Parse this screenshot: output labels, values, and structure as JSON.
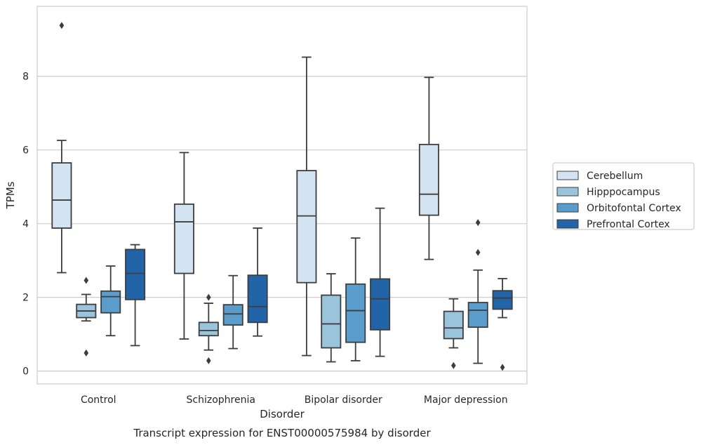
{
  "chart_data": {
    "type": "box",
    "xlabel": "Disorder",
    "ylabel": "TPMs",
    "caption": "Transcript expression for ENST00000575984 by disorder",
    "ylim": [
      -0.35,
      9.9
    ],
    "yticks": [
      0,
      2,
      4,
      6,
      8
    ],
    "grid": "horizontal",
    "legend_position": "right",
    "categories": [
      "Control",
      "Schizophrenia",
      "Bipolar disorder",
      "Major depression"
    ],
    "series": [
      {
        "name": "Cerebellum",
        "color": "#d4e3f1",
        "boxes": [
          {
            "whisker_low": 2.67,
            "q1": 3.88,
            "median": 4.64,
            "q3": 5.65,
            "whisker_high": 6.26,
            "outliers": [
              9.38
            ]
          },
          {
            "whisker_low": 0.87,
            "q1": 2.65,
            "median": 4.05,
            "q3": 4.53,
            "whisker_high": 5.93,
            "outliers": []
          },
          {
            "whisker_low": 0.42,
            "q1": 2.4,
            "median": 4.21,
            "q3": 5.44,
            "whisker_high": 8.52,
            "outliers": []
          },
          {
            "whisker_low": 3.03,
            "q1": 4.23,
            "median": 4.8,
            "q3": 6.15,
            "whisker_high": 7.97,
            "outliers": []
          }
        ]
      },
      {
        "name": "Hipppocampus",
        "color": "#9ac3dc",
        "boxes": [
          {
            "whisker_low": 1.36,
            "q1": 1.45,
            "median": 1.63,
            "q3": 1.81,
            "whisker_high": 2.08,
            "outliers": [
              2.46,
              0.49
            ]
          },
          {
            "whisker_low": 0.57,
            "q1": 0.96,
            "median": 1.1,
            "q3": 1.32,
            "whisker_high": 1.84,
            "outliers": [
              2.0,
              0.28
            ]
          },
          {
            "whisker_low": 0.25,
            "q1": 0.63,
            "median": 1.28,
            "q3": 2.06,
            "whisker_high": 2.64,
            "outliers": []
          },
          {
            "whisker_low": 0.63,
            "q1": 0.88,
            "median": 1.17,
            "q3": 1.62,
            "whisker_high": 1.96,
            "outliers": [
              0.15
            ]
          }
        ]
      },
      {
        "name": "Orbitofontal Cortex",
        "color": "#5a9ccb",
        "boxes": [
          {
            "whisker_low": 0.96,
            "q1": 1.58,
            "median": 2.02,
            "q3": 2.17,
            "whisker_high": 2.85,
            "outliers": []
          },
          {
            "whisker_low": 0.61,
            "q1": 1.25,
            "median": 1.55,
            "q3": 1.8,
            "whisker_high": 2.59,
            "outliers": []
          },
          {
            "whisker_low": 0.28,
            "q1": 0.78,
            "median": 1.64,
            "q3": 2.36,
            "whisker_high": 3.61,
            "outliers": []
          },
          {
            "whisker_low": 0.21,
            "q1": 1.19,
            "median": 1.65,
            "q3": 1.86,
            "whisker_high": 2.74,
            "outliers": [
              4.03,
              3.22
            ]
          }
        ]
      },
      {
        "name": "Prefrontal Cortex",
        "color": "#2264a8",
        "boxes": [
          {
            "whisker_low": 0.69,
            "q1": 1.94,
            "median": 2.65,
            "q3": 3.3,
            "whisker_high": 3.43,
            "outliers": []
          },
          {
            "whisker_low": 0.95,
            "q1": 1.32,
            "median": 1.75,
            "q3": 2.6,
            "whisker_high": 3.88,
            "outliers": []
          },
          {
            "whisker_low": 0.4,
            "q1": 1.12,
            "median": 1.96,
            "q3": 2.5,
            "whisker_high": 4.42,
            "outliers": []
          },
          {
            "whisker_low": 1.45,
            "q1": 1.68,
            "median": 1.98,
            "q3": 2.18,
            "whisker_high": 2.51,
            "outliers": [
              0.1
            ]
          }
        ]
      }
    ]
  }
}
